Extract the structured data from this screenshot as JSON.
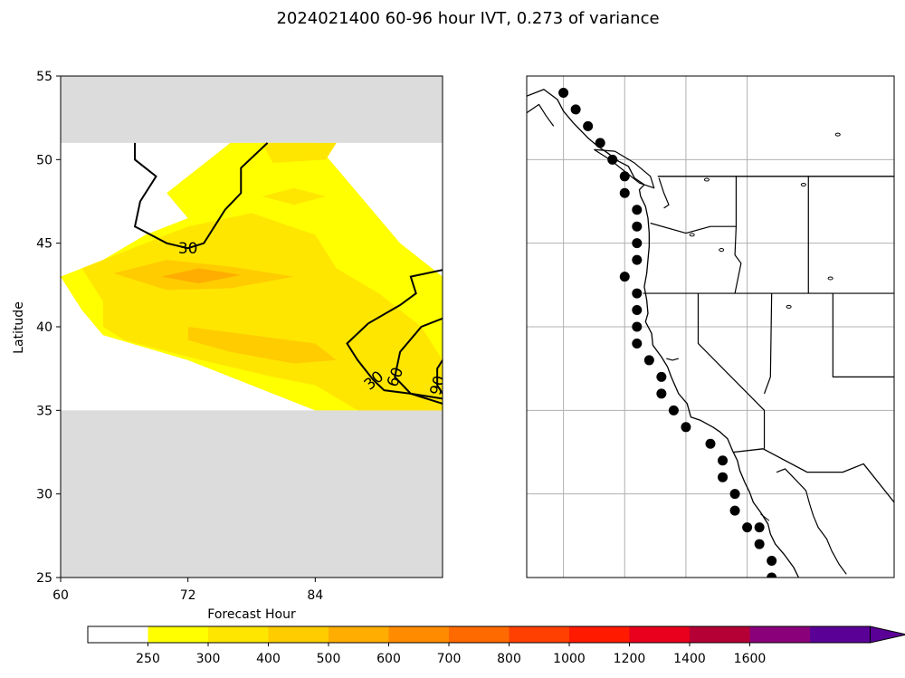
{
  "title": "2024021400 60-96 hour IVT, 0.273 of variance",
  "chart_data": [
    {
      "type": "heatmap",
      "subtype": "filled contour with line contours",
      "xlabel": "Forecast Hour",
      "ylabel": "Latitude",
      "xlim": [
        60,
        96
      ],
      "ylim": [
        25,
        55
      ],
      "xticks": [
        "60",
        "72",
        "84"
      ],
      "yticks": [
        "25",
        "30",
        "35",
        "40",
        "45",
        "50",
        "55"
      ],
      "grid": false,
      "masked_lat_ranges": [
        [
          51,
          55
        ],
        [
          25,
          35
        ]
      ],
      "mask_color": "#dcdcdc",
      "filled_levels": [
        {
          "level": 250,
          "color": "#ffff00",
          "polygon": [
            [
              60.0,
              43.0
            ],
            [
              64.0,
              44.0
            ],
            [
              68.0,
              45.5
            ],
            [
              72.0,
              46.5
            ],
            [
              70.0,
              48.0
            ],
            [
              72.0,
              49.0
            ],
            [
              74.0,
              50.0
            ],
            [
              76.0,
              51.0
            ],
            [
              84.0,
              51.0
            ],
            [
              86.0,
              49.5
            ],
            [
              88.0,
              48.0
            ],
            [
              90.0,
              46.5
            ],
            [
              92.0,
              45.0
            ],
            [
              96.0,
              43.0
            ],
            [
              96.0,
              35.0
            ],
            [
              84.0,
              35.0
            ],
            [
              80.0,
              36.0
            ],
            [
              76.0,
              37.0
            ],
            [
              72.0,
              38.0
            ],
            [
              64.0,
              39.5
            ],
            [
              62.0,
              41.0
            ],
            [
              60.0,
              43.0
            ]
          ]
        },
        {
          "level": 300,
          "color": "#ffe600",
          "polygon": [
            [
              62.0,
              43.5
            ],
            [
              66.0,
              44.5
            ],
            [
              68.0,
              45.0
            ],
            [
              72.0,
              46.0
            ],
            [
              78.0,
              46.8
            ],
            [
              84.0,
              45.5
            ],
            [
              86.0,
              43.5
            ],
            [
              90.0,
              42.0
            ],
            [
              94.0,
              40.0
            ],
            [
              96.0,
              38.0
            ],
            [
              96.0,
              35.0
            ],
            [
              88.0,
              35.0
            ],
            [
              84.0,
              36.5
            ],
            [
              80.0,
              37.0
            ],
            [
              76.0,
              37.6
            ],
            [
              72.0,
              38.2
            ],
            [
              66.0,
              39.2
            ],
            [
              64.0,
              40.0
            ],
            [
              64.0,
              41.5
            ],
            [
              62.0,
              43.5
            ]
          ]
        },
        {
          "level": 300,
          "color": "#ffe600",
          "polygon": [
            [
              79.0,
              51.0
            ],
            [
              86.0,
              51.0
            ],
            [
              85.0,
              50.0
            ],
            [
              80.0,
              49.8
            ],
            [
              79.0,
              51.0
            ]
          ]
        },
        {
          "level": 300,
          "color": "#ffe600",
          "polygon": [
            [
              79.0,
              47.8
            ],
            [
              82.0,
              48.3
            ],
            [
              85.0,
              47.8
            ],
            [
              82.0,
              47.3
            ],
            [
              79.0,
              47.8
            ]
          ]
        },
        {
          "level": 400,
          "color": "#ffcc00",
          "polygon": [
            [
              65.0,
              43.2
            ],
            [
              70.0,
              44.0
            ],
            [
              76.0,
              43.6
            ],
            [
              82.0,
              43.0
            ],
            [
              76.0,
              42.3
            ],
            [
              70.0,
              42.2
            ],
            [
              65.0,
              43.2
            ]
          ]
        },
        {
          "level": 400,
          "color": "#ffcc00",
          "polygon": [
            [
              72.0,
              40.0
            ],
            [
              78.0,
              39.5
            ],
            [
              84.0,
              39.0
            ],
            [
              86.0,
              38.0
            ],
            [
              82.0,
              37.8
            ],
            [
              76.0,
              38.5
            ],
            [
              72.0,
              39.2
            ],
            [
              72.0,
              40.0
            ]
          ]
        },
        {
          "level": 500,
          "color": "#ffad00",
          "polygon": [
            [
              69.5,
              43.0
            ],
            [
              73.0,
              43.5
            ],
            [
              77.0,
              43.1
            ],
            [
              73.0,
              42.6
            ],
            [
              69.5,
              43.0
            ]
          ]
        }
      ],
      "contour_lines": [
        {
          "level": 30,
          "label": "30",
          "points": [
            [
              67.0,
              51.0
            ],
            [
              67.0,
              50.0
            ],
            [
              69.0,
              49.0
            ],
            [
              67.5,
              47.5
            ],
            [
              67.0,
              46.0
            ],
            [
              70.0,
              45.0
            ],
            [
              72.0,
              44.7
            ],
            [
              73.5,
              45.0
            ],
            [
              75.5,
              47.0
            ],
            [
              77.0,
              48.0
            ],
            [
              77.0,
              49.5
            ],
            [
              79.5,
              51.0
            ]
          ]
        },
        {
          "level": 30,
          "label": "30",
          "points": [
            [
              96.0,
              43.4
            ],
            [
              93.0,
              43.0
            ],
            [
              93.5,
              42.0
            ],
            [
              92.0,
              41.3
            ],
            [
              89.0,
              40.2
            ],
            [
              87.0,
              39.0
            ],
            [
              88.0,
              38.0
            ],
            [
              89.5,
              36.8
            ],
            [
              90.5,
              36.2
            ],
            [
              93.0,
              36.0
            ],
            [
              96.0,
              35.7
            ]
          ]
        },
        {
          "level": 60,
          "label": "60",
          "points": [
            [
              96.0,
              40.5
            ],
            [
              94.0,
              40.0
            ],
            [
              92.0,
              38.5
            ],
            [
              91.5,
              37.0
            ],
            [
              93.0,
              36.0
            ],
            [
              96.0,
              35.4
            ]
          ]
        },
        {
          "level": 90,
          "label": "90",
          "points": [
            [
              96.0,
              38.0
            ],
            [
              95.5,
              37.5
            ],
            [
              95.5,
              36.5
            ],
            [
              96.0,
              36.0
            ]
          ]
        }
      ]
    },
    {
      "type": "scatter",
      "subtype": "map",
      "map_region": "North American west coast (British Columbia to Baja California)",
      "lon_range": [
        -134,
        -104
      ],
      "lat_range": [
        25,
        55
      ],
      "graticule": true,
      "graticule_lons": [
        -131,
        -126,
        -121,
        -116
      ],
      "graticule_lats": [
        30,
        35,
        40,
        45,
        50
      ],
      "borders": [
        "US-Canada border",
        "US-Mexico border",
        "state lines"
      ],
      "x": [
        -131,
        -130,
        -129,
        -128,
        -127,
        -126,
        -126,
        -125,
        -125,
        -125,
        -125,
        -126,
        -125,
        -125,
        -125,
        -125,
        -124,
        -123,
        -123,
        -122,
        -121,
        -119,
        -118,
        -118,
        -117,
        -117,
        -116,
        -115,
        -115,
        -114,
        -114
      ],
      "y": [
        54,
        53,
        52,
        51,
        50,
        49,
        48,
        47,
        46,
        45,
        44,
        43,
        42,
        41,
        40,
        39,
        38,
        37,
        36,
        35,
        34,
        33,
        32,
        31,
        30,
        29,
        28,
        28,
        27,
        26,
        25
      ],
      "marker_color": "#000000"
    }
  ],
  "colorbar": {
    "tick_labels": [
      "250",
      "300",
      "400",
      "500",
      "600",
      "700",
      "800",
      "1000",
      "1200",
      "1400",
      "1600"
    ],
    "colors": [
      "#ffffff",
      "#ffff00",
      "#ffe600",
      "#ffcc00",
      "#ffad00",
      "#ff8c00",
      "#ff6a00",
      "#ff4000",
      "#ff1a00",
      "#e8001c",
      "#b50036",
      "#8a007a",
      "#5a0096"
    ],
    "extend": "max"
  }
}
